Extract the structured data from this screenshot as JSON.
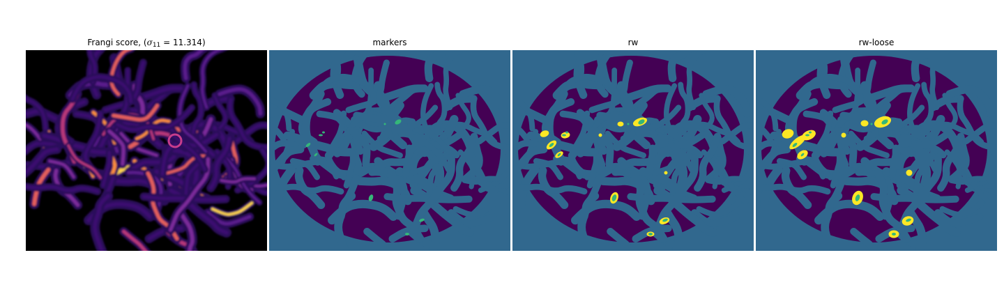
{
  "panels": [
    {
      "title_prefix": "Frangi score, (",
      "title_sigma": "σ",
      "title_sub": "11",
      "title_eq": " = 11.314",
      "title_suffix": ")",
      "colormap": "magma",
      "background": "#000000"
    },
    {
      "title": "markers",
      "colormap": "viridis",
      "background": "#31688e",
      "foreground": "#440154",
      "marker_color": "#35b779"
    },
    {
      "title": "rw",
      "colormap": "viridis",
      "background": "#31688e",
      "foreground": "#440154",
      "marker_color": "#35b779",
      "seg_color": "#fde725"
    },
    {
      "title": "rw-loose",
      "colormap": "viridis",
      "background": "#31688e",
      "foreground": "#440154",
      "marker_color": "#35b779",
      "seg_color": "#fde725"
    }
  ]
}
